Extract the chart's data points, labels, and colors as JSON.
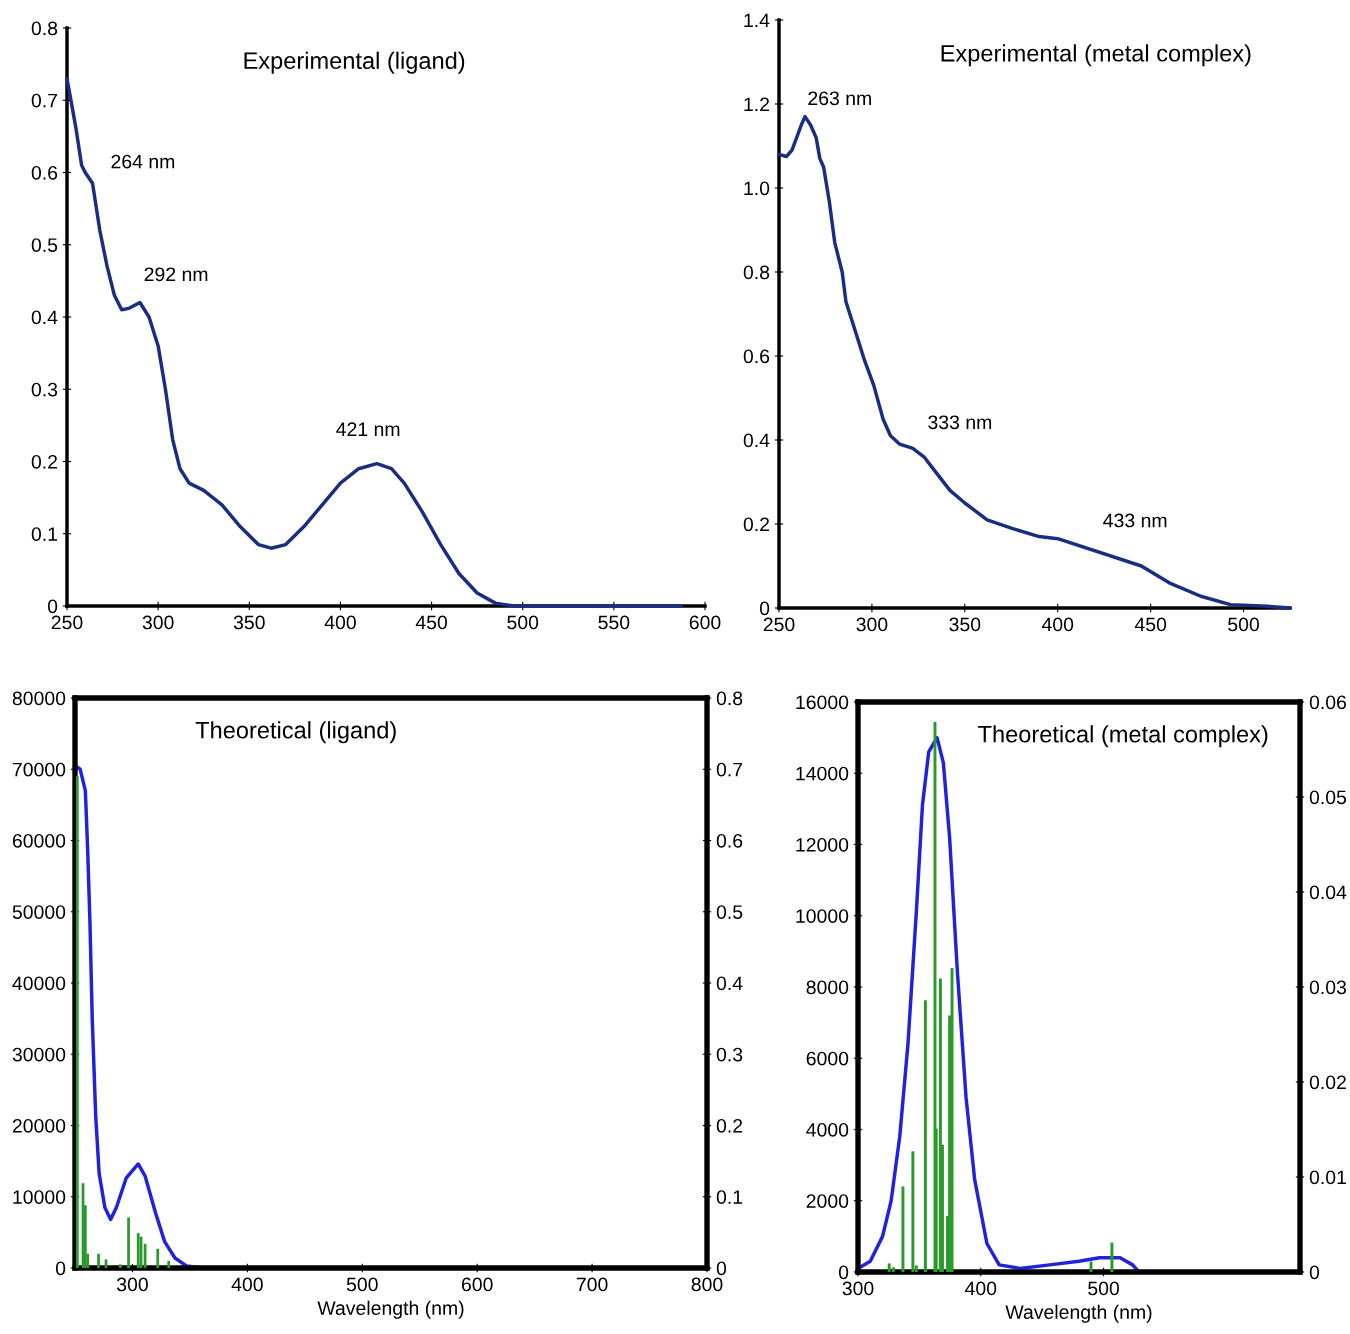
{
  "chart_data": [
    {
      "type": "line",
      "title": "Experimental (ligand)",
      "xlim": [
        250,
        600
      ],
      "xticks": [
        250,
        300,
        350,
        400,
        450,
        500,
        550,
        600
      ],
      "ylim": [
        0,
        0.8
      ],
      "yticks": [
        0,
        0.1,
        0.2,
        0.3,
        0.4,
        0.5,
        0.6,
        0.7,
        0.8
      ],
      "grid": false,
      "series": [
        {
          "color": "#1a2e80",
          "x": [
            250,
            255,
            258,
            260,
            264,
            268,
            272,
            276,
            280,
            284,
            290,
            295,
            300,
            304,
            308,
            312,
            317,
            325,
            335,
            345,
            355,
            362,
            370,
            380,
            390,
            400,
            410,
            420,
            428,
            435,
            445,
            455,
            465,
            475,
            485,
            495,
            520,
            540,
            587
          ],
          "values": [
            0.73,
            0.66,
            0.61,
            0.6,
            0.585,
            0.52,
            0.47,
            0.43,
            0.41,
            0.412,
            0.42,
            0.4,
            0.36,
            0.3,
            0.23,
            0.19,
            0.17,
            0.16,
            0.14,
            0.11,
            0.085,
            0.08,
            0.085,
            0.11,
            0.14,
            0.17,
            0.19,
            0.197,
            0.19,
            0.17,
            0.13,
            0.085,
            0.045,
            0.018,
            0.004,
            0,
            0,
            0,
            0
          ]
        }
      ],
      "annotations": [
        "264 nm",
        "292 nm",
        "421 nm"
      ]
    },
    {
      "type": "line",
      "title": "Experimental (metal complex)",
      "xlim": [
        250,
        525
      ],
      "xticks": [
        250,
        300,
        350,
        400,
        450,
        500
      ],
      "ylim": [
        0,
        1.4
      ],
      "yticks": [
        0,
        0.2,
        0.4,
        0.6,
        0.8,
        {
          "value": 1.0,
          "label": "1.0"
        },
        1.2,
        1.4
      ],
      "grid": false,
      "series": [
        {
          "color": "#1a2e80",
          "x": [
            250,
            254,
            257,
            262,
            264,
            267,
            270,
            272,
            274,
            277,
            280,
            284,
            286,
            291,
            296,
            301,
            306,
            310,
            315,
            322,
            328,
            335,
            342,
            350,
            362,
            375,
            390,
            400,
            445,
            460,
            477,
            493,
            513,
            525
          ],
          "values": [
            1.08,
            1.075,
            1.09,
            1.15,
            1.17,
            1.15,
            1.12,
            1.07,
            1.05,
            0.97,
            0.87,
            0.8,
            0.73,
            0.66,
            0.59,
            0.53,
            0.45,
            0.41,
            0.39,
            0.38,
            0.36,
            0.32,
            0.28,
            0.25,
            0.21,
            0.19,
            0.17,
            0.165,
            0.1,
            0.06,
            0.028,
            0.008,
            0.004,
            0
          ]
        }
      ],
      "annotations": [
        "263 nm",
        "333 nm",
        "433 nm"
      ]
    },
    {
      "type": "line",
      "title": "Theoretical (ligand)",
      "xlabel": "Wavelength (nm)",
      "xlim": [
        250,
        800
      ],
      "xticks": [
        300,
        400,
        500,
        600,
        700,
        800
      ],
      "ylim": [
        0,
        80000
      ],
      "yticks": [
        0,
        10000,
        20000,
        30000,
        40000,
        50000,
        60000,
        70000,
        80000
      ],
      "y2lim": [
        0,
        0.8
      ],
      "y2ticks": [
        0,
        0.1,
        0.2,
        0.3,
        0.4,
        0.5,
        0.6,
        0.7,
        0.8
      ],
      "grid": false,
      "series": [
        {
          "color": "#2222dd",
          "x": [
            251,
            254.5,
            259,
            261,
            263,
            265,
            268,
            271,
            276,
            281,
            286,
            294.5,
            305,
            311,
            320,
            328,
            337,
            347,
            362,
            800
          ],
          "values": [
            70400,
            70000,
            67000,
            58800,
            48600,
            35000,
            21400,
            13300,
            8500,
            6800,
            8500,
            12600,
            14600,
            12900,
            7800,
            3700,
            1400,
            300,
            0,
            0
          ]
        },
        {
          "type": "bar",
          "axis": "y2",
          "color": "#2a9a2a",
          "x": [
            252,
            257,
            259,
            261,
            270.5,
            277,
            289.5,
            296.6,
            305,
            307.5,
            311,
            322,
            331.6
          ],
          "values": [
            0.69,
            0.119,
            0.088,
            0.02,
            0.02,
            0.012,
            0.005,
            0.071,
            0.049,
            0.044,
            0.034,
            0.027,
            0.01
          ]
        }
      ]
    },
    {
      "type": "line",
      "title": "Theoretical (metal complex)",
      "xlabel": "Wavelength (nm)",
      "xlim": [
        300,
        660
      ],
      "xticks": [
        300,
        400,
        500
      ],
      "ylim": [
        0,
        16000
      ],
      "yticks": [
        0,
        2000,
        4000,
        6000,
        8000,
        10000,
        12000,
        14000,
        16000
      ],
      "y2lim": [
        0,
        0.06
      ],
      "y2ticks": [
        0,
        0.01,
        0.02,
        0.03,
        0.04,
        0.05,
        0.06
      ],
      "grid": false,
      "series": [
        {
          "color": "#2222dd",
          "x": [
            300,
            310,
            320,
            327,
            334,
            340.7,
            347.5,
            352.5,
            357.6,
            364.4,
            369.5,
            374.6,
            381,
            388,
            395,
            405,
            415,
            432,
            456,
            480,
            496.6,
            513.5,
            523.7,
            528.8
          ],
          "values": [
            100,
            300,
            1000,
            2000,
            3800,
            6400,
            10100,
            13100,
            14600,
            15000,
            14300,
            12200,
            8400,
            4900,
            2600,
            800,
            200,
            100,
            200,
            300,
            400,
            400,
            200,
            0
          ]
        },
        {
          "type": "bar",
          "axis": "y2",
          "color": "#2a9a2a",
          "x": [
            325.4,
            328.8,
            336.6,
            344.7,
            347.5,
            354.9,
            362.7,
            363.7,
            367.1,
            368.8,
            372.9,
            374.6,
            376.6,
            489.8,
            506.8
          ],
          "values": [
            0.0009,
            0.0005,
            0.009,
            0.0127,
            0.0007,
            0.0286,
            0.0579,
            0.0151,
            0.0309,
            0.0134,
            0.0059,
            0.027,
            0.032,
            0.0011,
            0.0031
          ]
        }
      ]
    }
  ]
}
